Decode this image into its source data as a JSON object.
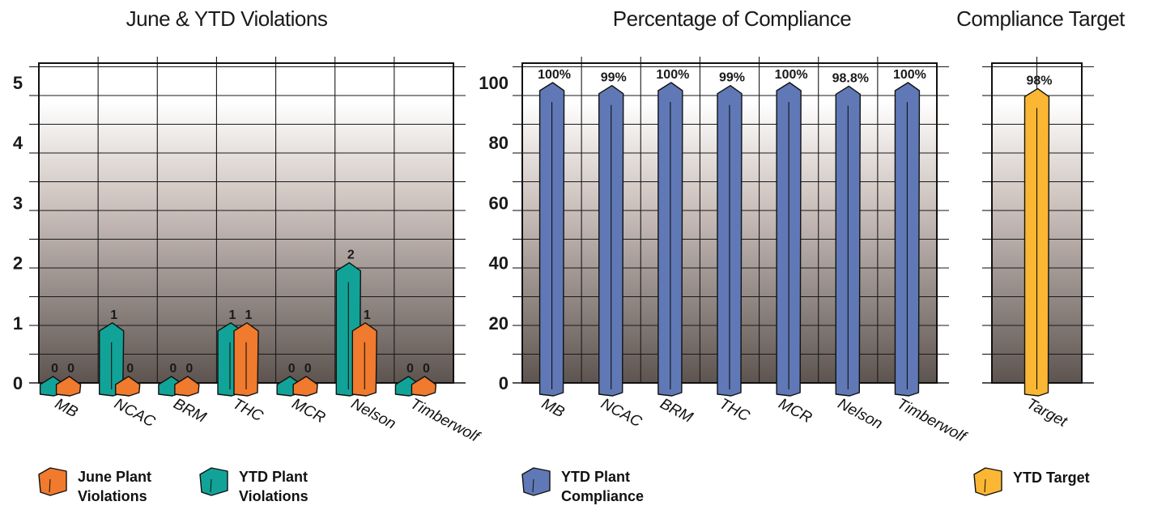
{
  "chart_data": [
    {
      "type": "bar",
      "title": "June & YTD Violations",
      "categories": [
        "MB",
        "NCAC",
        "BRM",
        "THC",
        "MCR",
        "Nelson",
        "Timberwolf"
      ],
      "ylim": [
        0,
        5
      ],
      "yticks": [
        0,
        1,
        2,
        3,
        4,
        5
      ],
      "grid": true,
      "legend_position": "bottom",
      "series": [
        {
          "name": "YTD Plant Violations",
          "color": "#12a398",
          "values": [
            0,
            1,
            0,
            1,
            0,
            2,
            0
          ],
          "labels": [
            "0",
            "1",
            "0",
            "1",
            "0",
            "2",
            "0"
          ]
        },
        {
          "name": "June Plant Violations",
          "color": "#f07a2d",
          "values": [
            0,
            0,
            0,
            1,
            0,
            1,
            0
          ],
          "labels": [
            "0",
            "0",
            "0",
            "1",
            "0",
            "1",
            "0"
          ]
        }
      ],
      "legend": [
        {
          "line1": "June Plant",
          "line2": "Violations",
          "color": "#f07a2d"
        },
        {
          "line1": "YTD Plant",
          "line2": "Violations",
          "color": "#12a398"
        }
      ]
    },
    {
      "type": "bar",
      "title": "Percentage of Compliance",
      "categories": [
        "MB",
        "NCAC",
        "BRM",
        "THC",
        "MCR",
        "Nelson",
        "Timberwolf"
      ],
      "ylim": [
        0,
        100
      ],
      "yticks": [
        0,
        20,
        40,
        60,
        80,
        100
      ],
      "grid": true,
      "legend_position": "bottom",
      "series": [
        {
          "name": "YTD Plant Compliance",
          "color": "#6079b6",
          "values": [
            100,
            99,
            100,
            99,
            100,
            98.8,
            100
          ],
          "labels": [
            "100%",
            "99%",
            "100%",
            "99%",
            "100%",
            "98.8%",
            "100%"
          ]
        }
      ],
      "legend": [
        {
          "line1": "YTD Plant",
          "line2": "Compliance",
          "color": "#6079b6"
        }
      ]
    },
    {
      "type": "bar",
      "title": "Compliance Target",
      "categories": [
        "Target"
      ],
      "ylim": [
        0,
        100
      ],
      "grid": true,
      "legend_position": "bottom",
      "series": [
        {
          "name": "YTD Target",
          "color": "#fbb733",
          "values": [
            98
          ],
          "labels": [
            "98%"
          ]
        }
      ],
      "legend": [
        {
          "line1": "YTD Target",
          "line2": "",
          "color": "#fbb733"
        }
      ]
    }
  ]
}
